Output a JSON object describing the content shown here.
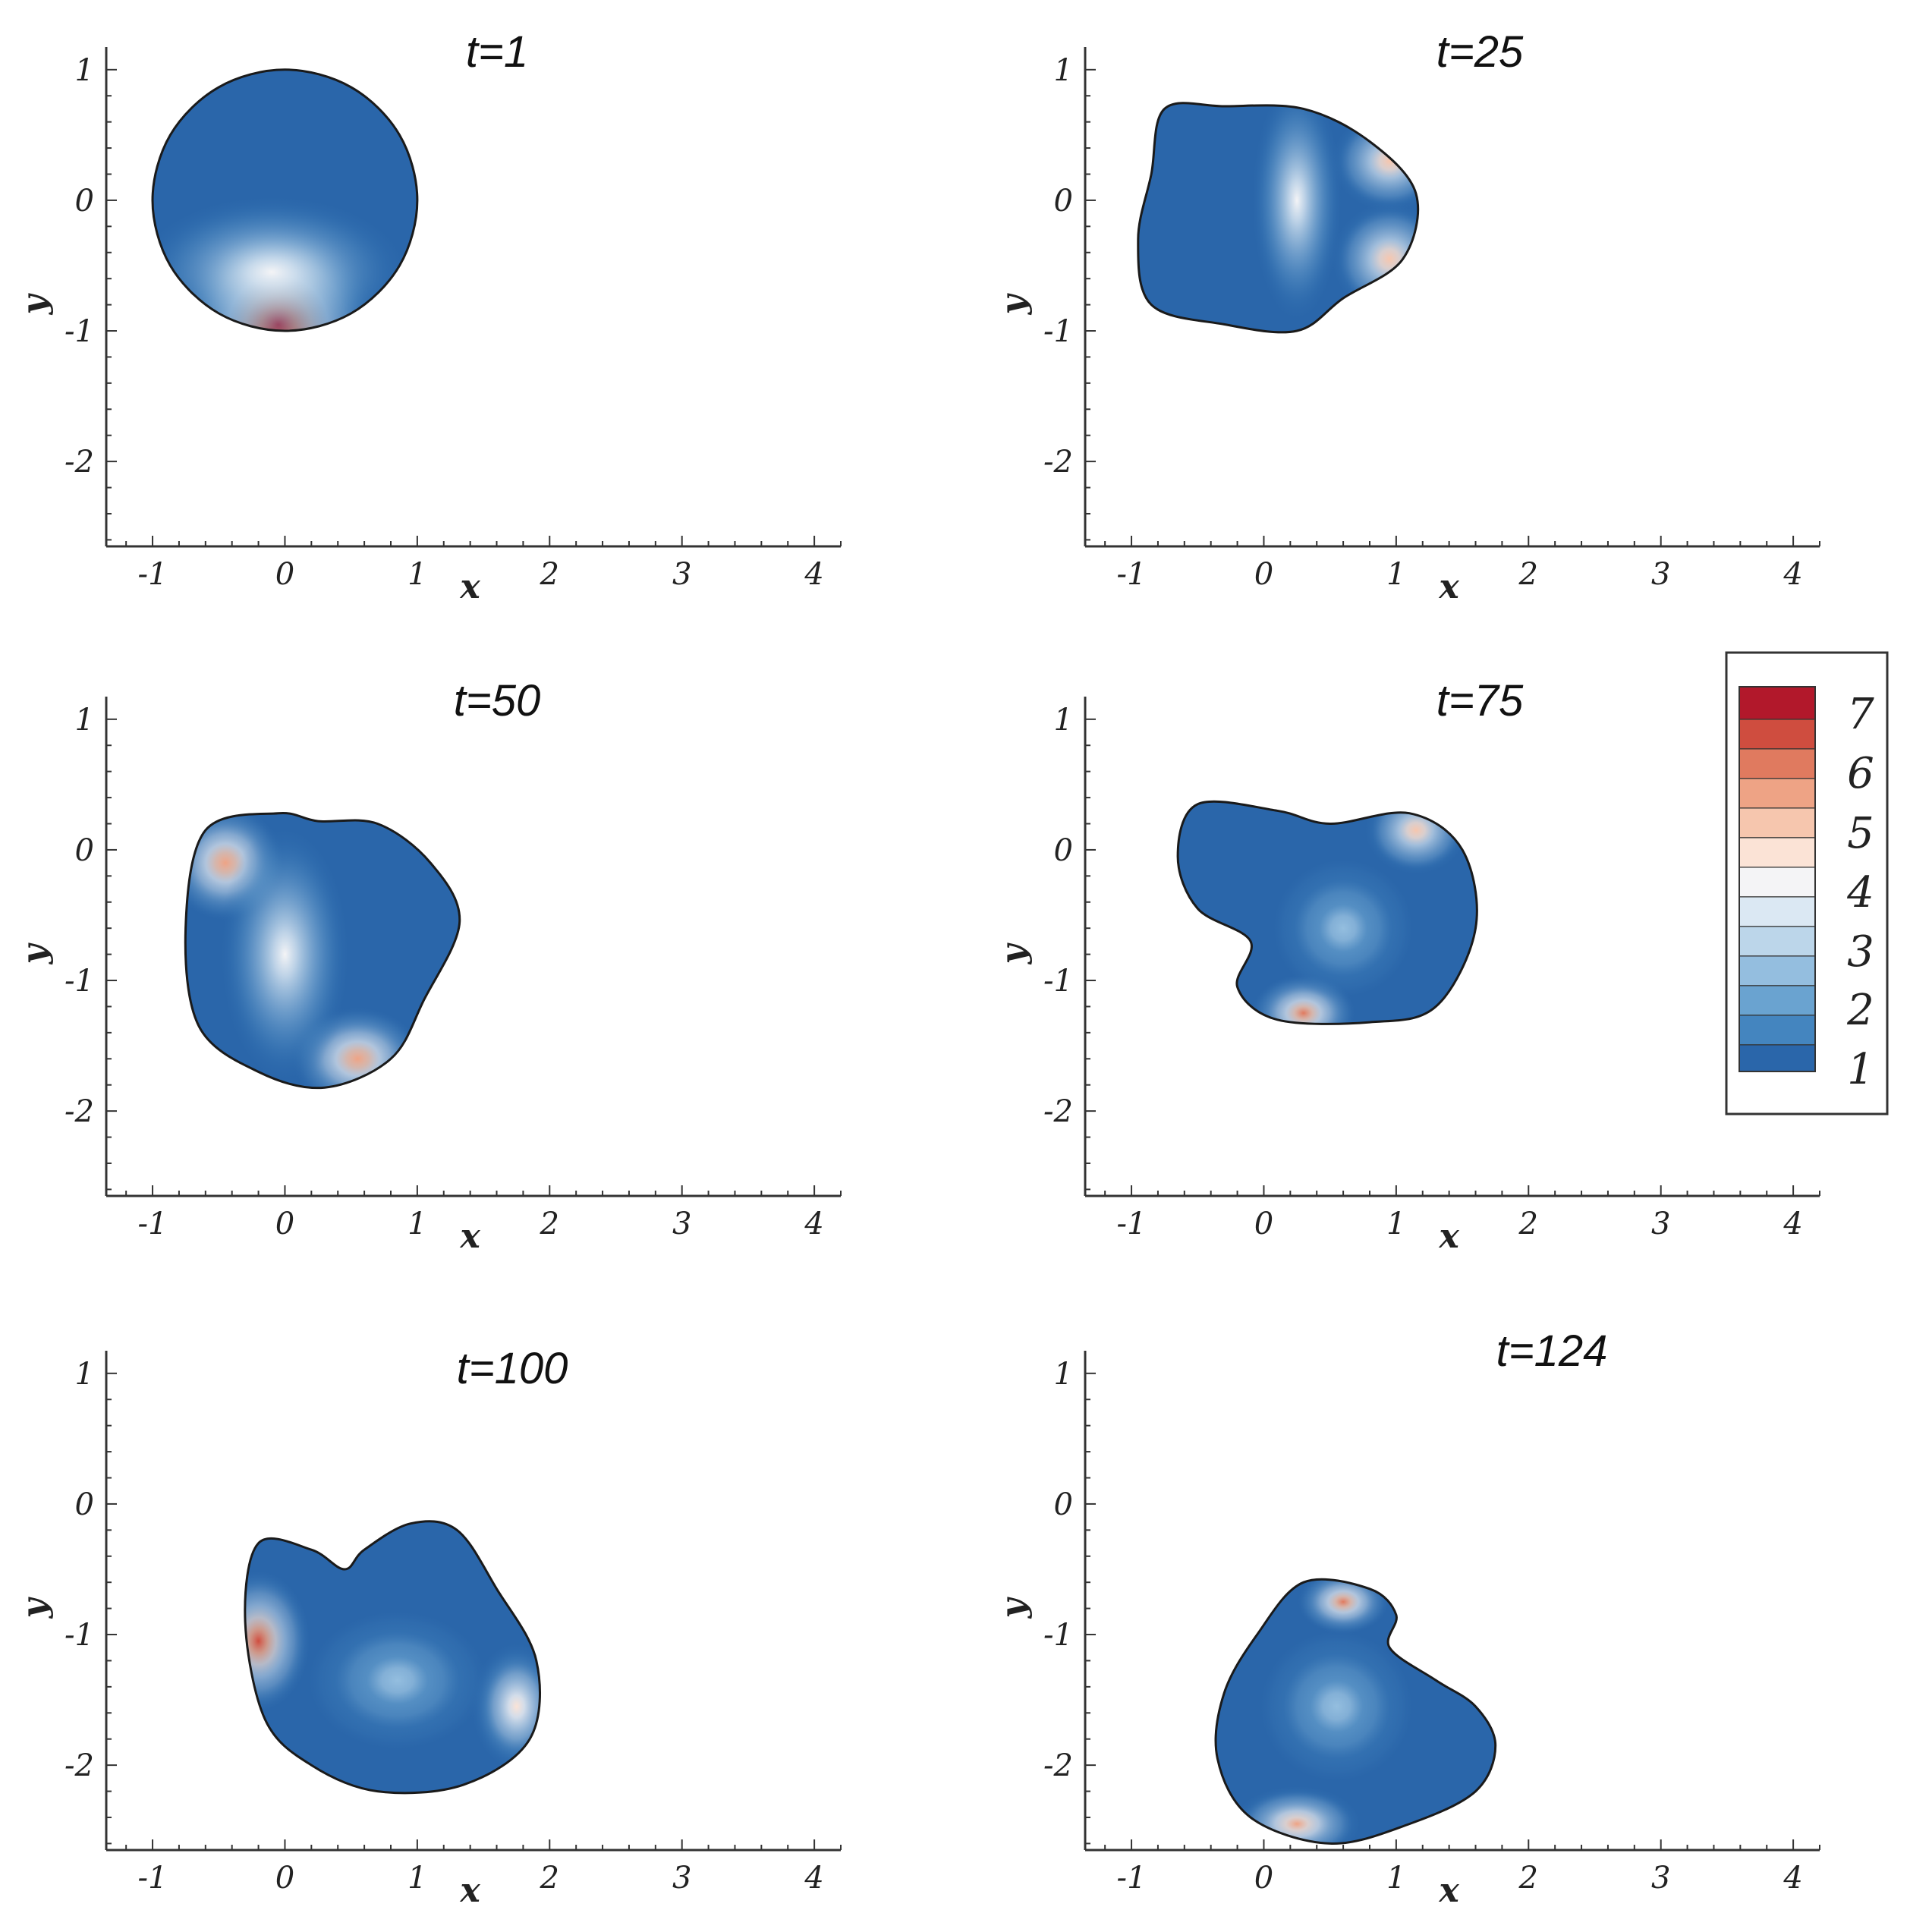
{
  "chart_data": {
    "type": "contour",
    "colorbar": {
      "labels": [
        "7",
        "6",
        "5",
        "4",
        "3",
        "2",
        "1"
      ],
      "min": 0.8,
      "max": 7.3,
      "levels": [
        {
          "value": 7.0,
          "color": "#b2182b"
        },
        {
          "value": 6.5,
          "color": "#cf4d3f"
        },
        {
          "value": 6.0,
          "color": "#e07a5f"
        },
        {
          "value": 5.5,
          "color": "#eea385"
        },
        {
          "value": 5.0,
          "color": "#f6c6ae"
        },
        {
          "value": 4.5,
          "color": "#fbe3d6"
        },
        {
          "value": 4.0,
          "color": "#f4f4f6"
        },
        {
          "value": 3.5,
          "color": "#dbe8f3"
        },
        {
          "value": 3.0,
          "color": "#bcd6ea"
        },
        {
          "value": 2.5,
          "color": "#94bedf"
        },
        {
          "value": 2.0,
          "color": "#6aa3d0"
        },
        {
          "value": 1.5,
          "color": "#4485bf"
        },
        {
          "value": 1.0,
          "color": "#2a66aa"
        }
      ]
    },
    "panels": [
      {
        "title": "t=1",
        "xlabel": "x",
        "ylabel": "y",
        "xlim": [
          -1.35,
          4.2
        ],
        "ylim": [
          -2.65,
          1.15
        ],
        "xticks": [
          "-1",
          "0",
          "1",
          "2",
          "3",
          "4"
        ],
        "xtick_values": [
          -1,
          0,
          1,
          2,
          3,
          4
        ],
        "yticks": [
          "1",
          "0",
          "-1",
          "-2"
        ],
        "ytick_values": [
          1,
          0,
          -1,
          -2
        ],
        "outline": [
          [
            0.0,
            1.0
          ],
          [
            0.5,
            0.866
          ],
          [
            0.866,
            0.5
          ],
          [
            1.0,
            0.0
          ],
          [
            0.866,
            -0.5
          ],
          [
            0.5,
            -0.866
          ],
          [
            0.0,
            -1.0
          ],
          [
            -0.5,
            -0.866
          ],
          [
            -0.866,
            -0.5
          ],
          [
            -1.0,
            0.0
          ],
          [
            -0.866,
            0.5
          ],
          [
            -0.5,
            0.866
          ]
        ],
        "hotspots": [
          {
            "x": -0.05,
            "y": -0.95,
            "value": 6.8,
            "rx": 0.75,
            "ry": 0.75
          },
          {
            "x": -0.1,
            "y": -0.55,
            "value": 4.0,
            "rx": 1.05,
            "ry": 0.6
          }
        ]
      },
      {
        "title": "t=25",
        "xlabel": "x",
        "ylabel": "y",
        "xlim": [
          -1.35,
          4.2
        ],
        "ylim": [
          -2.65,
          1.15
        ],
        "xticks": [
          "-1",
          "0",
          "1",
          "2",
          "3",
          "4"
        ],
        "xtick_values": [
          -1,
          0,
          1,
          2,
          3,
          4
        ],
        "yticks": [
          "1",
          "0",
          "-1",
          "-2"
        ],
        "ytick_values": [
          1,
          0,
          -1,
          -2
        ],
        "outline": [
          [
            -0.75,
            0.7
          ],
          [
            -0.3,
            0.72
          ],
          [
            0.3,
            0.7
          ],
          [
            0.8,
            0.45
          ],
          [
            1.15,
            0.05
          ],
          [
            1.05,
            -0.45
          ],
          [
            0.6,
            -0.75
          ],
          [
            0.25,
            -1.0
          ],
          [
            -0.3,
            -0.95
          ],
          [
            -0.85,
            -0.8
          ],
          [
            -0.95,
            -0.3
          ],
          [
            -0.85,
            0.2
          ]
        ],
        "hotspots": [
          {
            "x": 0.95,
            "y": 0.3,
            "value": 5.0,
            "rx": 0.45,
            "ry": 0.4
          },
          {
            "x": 0.95,
            "y": -0.45,
            "value": 5.0,
            "rx": 0.45,
            "ry": 0.45
          },
          {
            "x": 0.25,
            "y": 0.0,
            "value": 4.0,
            "rx": 0.35,
            "ry": 0.95
          }
        ]
      },
      {
        "title": "t=50",
        "xlabel": "x",
        "ylabel": "y",
        "xlim": [
          -1.35,
          4.2
        ],
        "ylim": [
          -2.65,
          1.15
        ],
        "xticks": [
          "-1",
          "0",
          "1",
          "2",
          "3",
          "4"
        ],
        "xtick_values": [
          -1,
          0,
          1,
          2,
          3,
          4
        ],
        "yticks": [
          "1",
          "0",
          "-1",
          "-2"
        ],
        "ytick_values": [
          1,
          0,
          -1,
          -2
        ],
        "outline": [
          [
            -0.6,
            0.15
          ],
          [
            -0.05,
            0.28
          ],
          [
            0.25,
            0.22
          ],
          [
            0.7,
            0.2
          ],
          [
            1.1,
            -0.1
          ],
          [
            1.32,
            -0.55
          ],
          [
            1.05,
            -1.15
          ],
          [
            0.8,
            -1.6
          ],
          [
            0.3,
            -1.82
          ],
          [
            -0.2,
            -1.7
          ],
          [
            -0.65,
            -1.35
          ],
          [
            -0.75,
            -0.6
          ]
        ],
        "hotspots": [
          {
            "x": -0.45,
            "y": -0.1,
            "value": 5.5,
            "rx": 0.45,
            "ry": 0.45
          },
          {
            "x": 0.55,
            "y": -1.6,
            "value": 5.5,
            "rx": 0.5,
            "ry": 0.4
          },
          {
            "x": 0.0,
            "y": -0.8,
            "value": 4.0,
            "rx": 0.5,
            "ry": 1.0
          }
        ]
      },
      {
        "title": "t=75",
        "xlabel": "x",
        "ylabel": "y",
        "xlim": [
          -1.35,
          4.2
        ],
        "ylim": [
          -2.65,
          1.15
        ],
        "xticks": [
          "-1",
          "0",
          "1",
          "2",
          "3",
          "4"
        ],
        "xtick_values": [
          -1,
          0,
          1,
          2,
          3,
          4
        ],
        "yticks": [
          "1",
          "0",
          "-1",
          "-2"
        ],
        "ytick_values": [
          1,
          0,
          -1,
          -2
        ],
        "outline": [
          [
            -0.5,
            0.35
          ],
          [
            0.1,
            0.3
          ],
          [
            0.5,
            0.2
          ],
          [
            1.1,
            0.28
          ],
          [
            1.5,
            0.0
          ],
          [
            1.6,
            -0.6
          ],
          [
            1.3,
            -1.2
          ],
          [
            0.8,
            -1.32
          ],
          [
            0.1,
            -1.3
          ],
          [
            -0.2,
            -1.05
          ],
          [
            -0.1,
            -0.7
          ],
          [
            -0.5,
            -0.45
          ],
          [
            -0.65,
            -0.05
          ]
        ],
        "hotspots": [
          {
            "x": 1.15,
            "y": 0.15,
            "value": 5.0,
            "rx": 0.4,
            "ry": 0.35
          },
          {
            "x": 0.3,
            "y": -1.25,
            "value": 5.8,
            "rx": 0.4,
            "ry": 0.3
          },
          {
            "x": 0.6,
            "y": -0.6,
            "value": 2.5,
            "rx": 0.55,
            "ry": 0.55
          }
        ]
      },
      {
        "title": "t=100",
        "xlabel": "x",
        "ylabel": "y",
        "xlim": [
          -1.35,
          4.2
        ],
        "ylim": [
          -2.65,
          1.15
        ],
        "xticks": [
          "-1",
          "0",
          "1",
          "2",
          "3",
          "4"
        ],
        "xtick_values": [
          -1,
          0,
          1,
          2,
          3,
          4
        ],
        "yticks": [
          "1",
          "0",
          "-1",
          "-2"
        ],
        "ytick_values": [
          1,
          0,
          -1,
          -2
        ],
        "outline": [
          [
            -0.2,
            -0.3
          ],
          [
            0.2,
            -0.35
          ],
          [
            0.45,
            -0.5
          ],
          [
            0.6,
            -0.35
          ],
          [
            0.95,
            -0.15
          ],
          [
            1.3,
            -0.2
          ],
          [
            1.6,
            -0.65
          ],
          [
            1.9,
            -1.2
          ],
          [
            1.85,
            -1.8
          ],
          [
            1.35,
            -2.15
          ],
          [
            0.7,
            -2.2
          ],
          [
            0.2,
            -2.0
          ],
          [
            -0.15,
            -1.65
          ],
          [
            -0.3,
            -0.9
          ]
        ],
        "hotspots": [
          {
            "x": -0.2,
            "y": -1.05,
            "value": 6.3,
            "rx": 0.4,
            "ry": 0.55
          },
          {
            "x": 1.75,
            "y": -1.55,
            "value": 4.5,
            "rx": 0.35,
            "ry": 0.5
          },
          {
            "x": 0.85,
            "y": -1.35,
            "value": 2.5,
            "rx": 0.7,
            "ry": 0.55
          }
        ]
      },
      {
        "title": "t=124",
        "xlabel": "x",
        "ylabel": "y",
        "xlim": [
          -1.35,
          4.2
        ],
        "ylim": [
          -2.65,
          1.15
        ],
        "xticks": [
          "-1",
          "0",
          "1",
          "2",
          "3",
          "4"
        ],
        "xtick_values": [
          -1,
          0,
          1,
          2,
          3,
          4
        ],
        "yticks": [
          "1",
          "0",
          "-1",
          "-2"
        ],
        "ytick_values": [
          1,
          0,
          -1,
          -2
        ],
        "outline": [
          [
            0.3,
            -0.6
          ],
          [
            0.8,
            -0.65
          ],
          [
            1.0,
            -0.85
          ],
          [
            0.95,
            -1.1
          ],
          [
            1.3,
            -1.35
          ],
          [
            1.6,
            -1.55
          ],
          [
            1.75,
            -1.85
          ],
          [
            1.6,
            -2.2
          ],
          [
            1.1,
            -2.45
          ],
          [
            0.5,
            -2.6
          ],
          [
            -0.1,
            -2.4
          ],
          [
            -0.35,
            -1.95
          ],
          [
            -0.3,
            -1.45
          ],
          [
            -0.05,
            -1.0
          ]
        ],
        "hotspots": [
          {
            "x": 0.6,
            "y": -0.75,
            "value": 5.8,
            "rx": 0.35,
            "ry": 0.25
          },
          {
            "x": 0.25,
            "y": -2.45,
            "value": 5.3,
            "rx": 0.5,
            "ry": 0.3
          },
          {
            "x": 0.55,
            "y": -1.55,
            "value": 2.5,
            "rx": 0.6,
            "ry": 0.6
          }
        ]
      }
    ]
  }
}
